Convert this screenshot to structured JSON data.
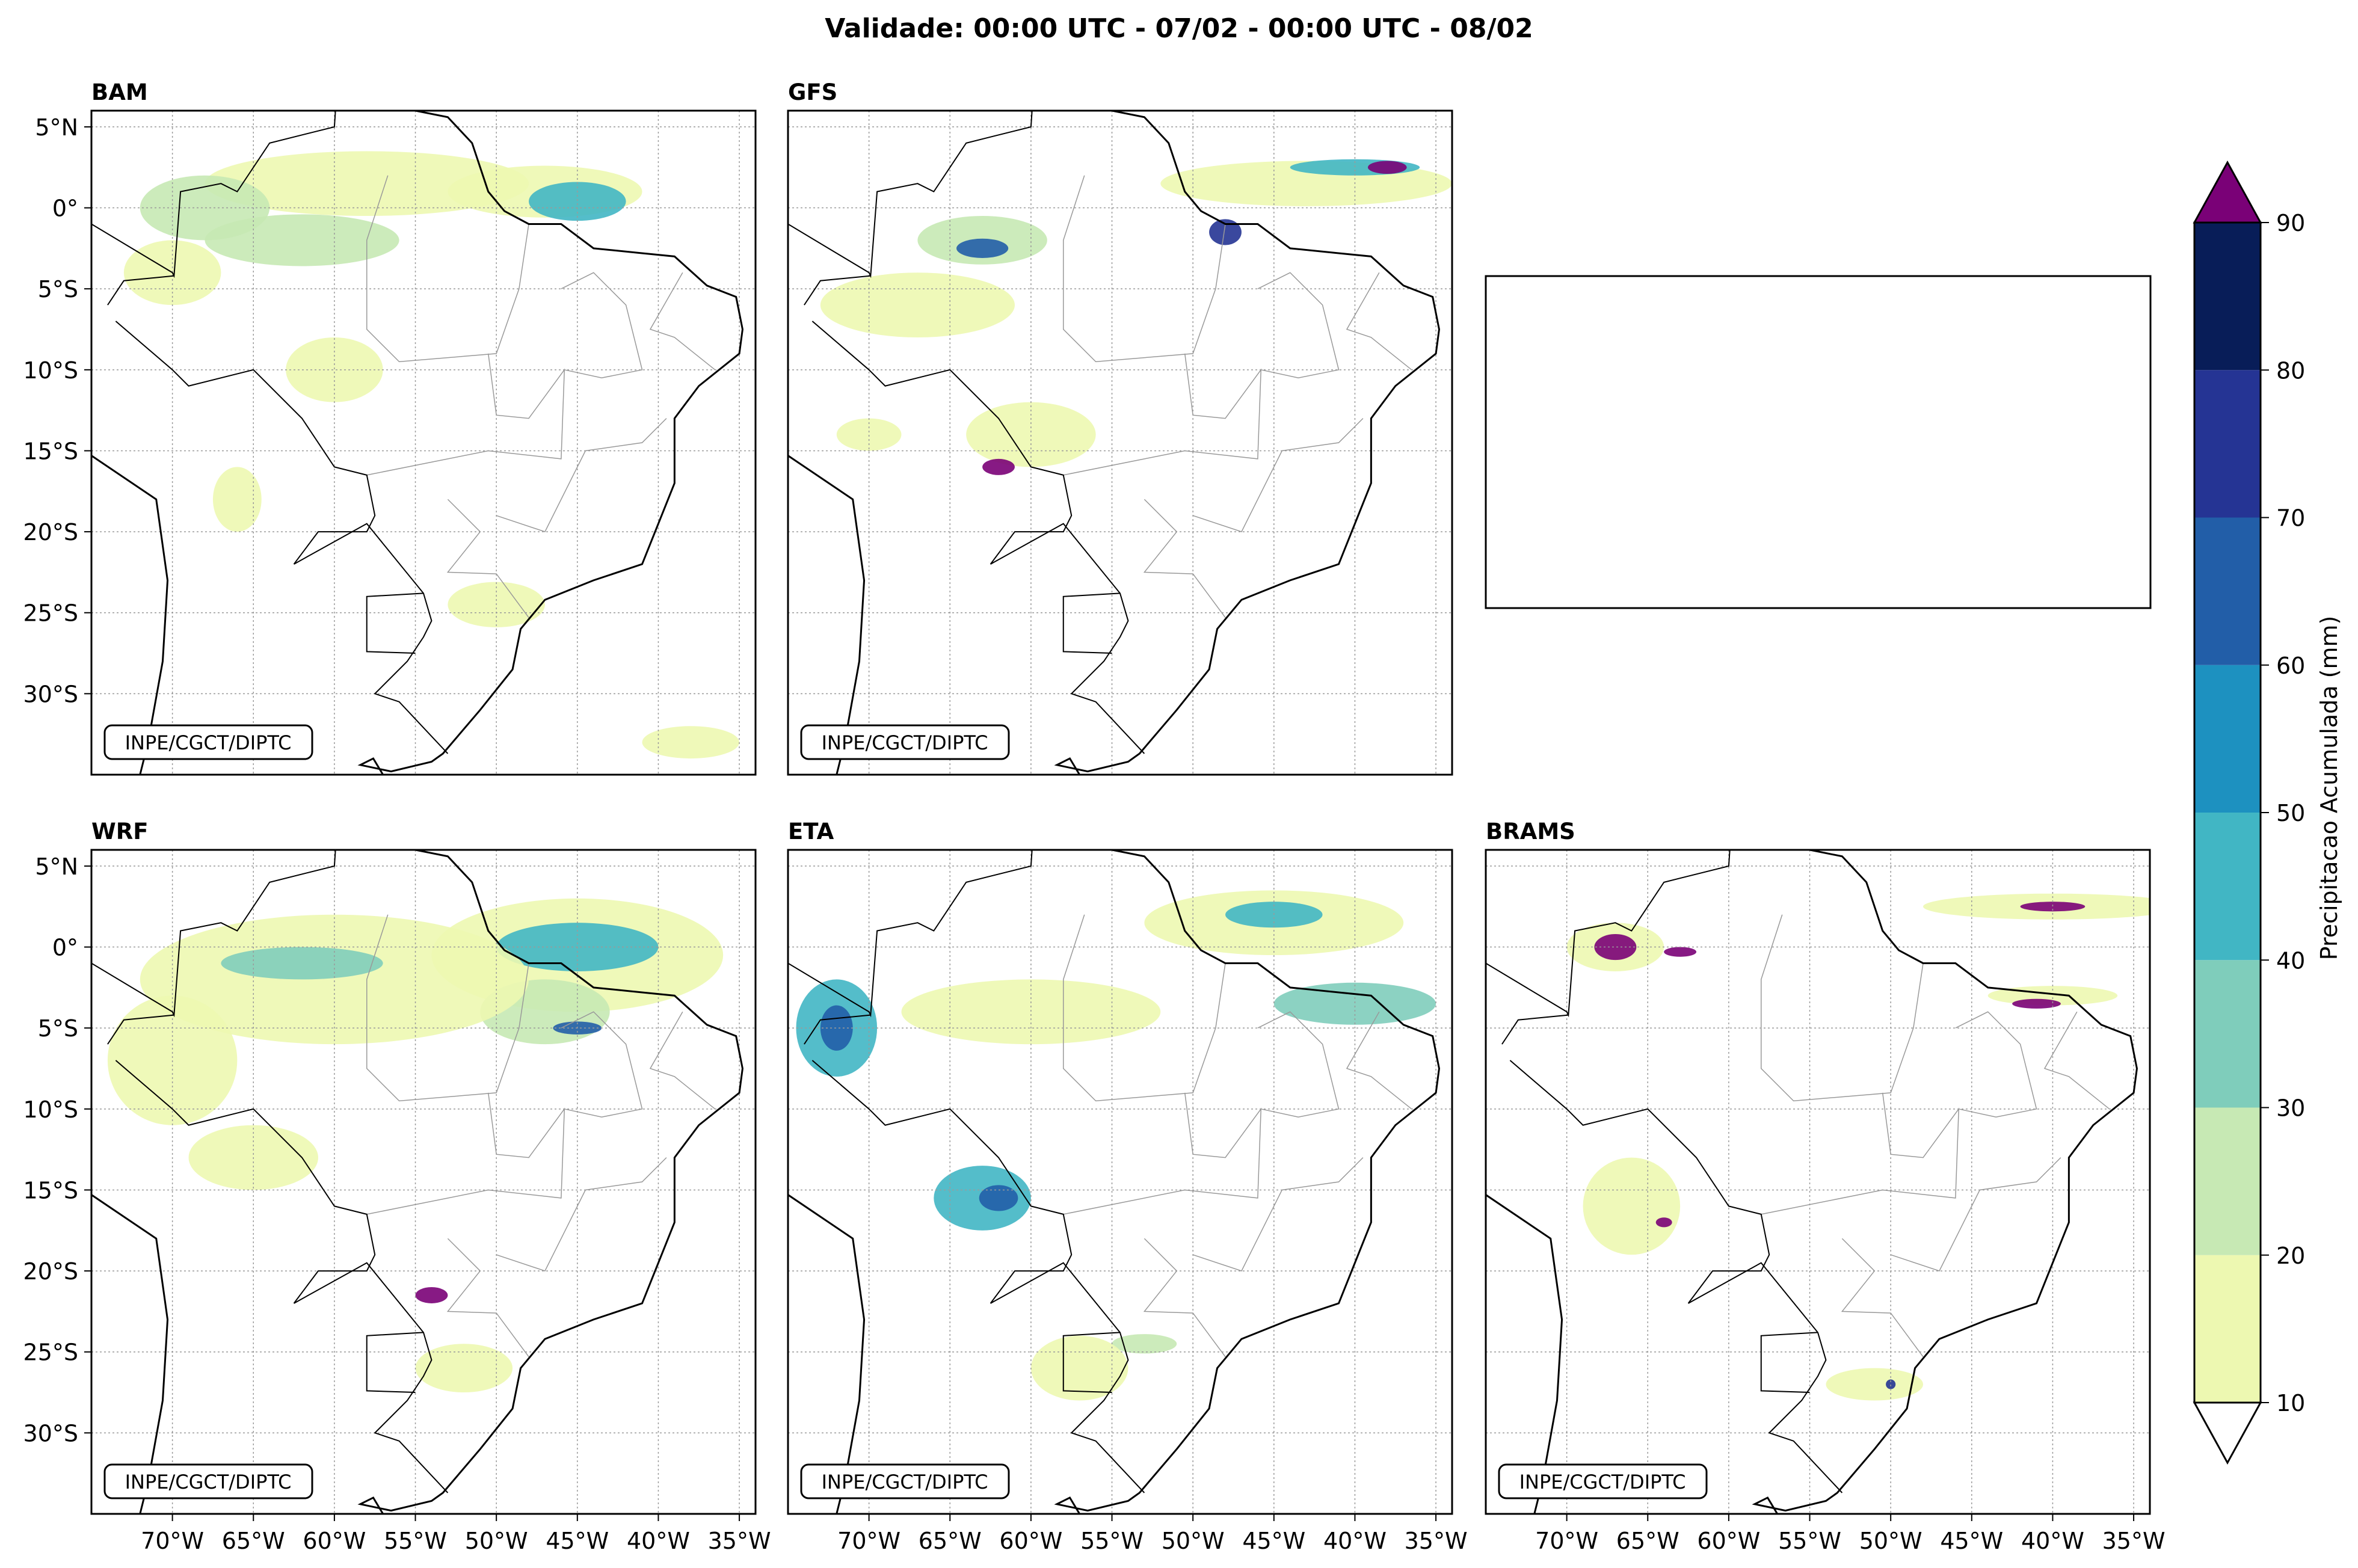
{
  "figure": {
    "title": "Validade: 00:00 UTC - 07/02 - 00:00 UTC - 08/02"
  },
  "panels": [
    {
      "id": "bam",
      "name": "BAM",
      "credit": "INPE/CGCT/DIPTC",
      "lat_labels": true,
      "lon_labels": false
    },
    {
      "id": "gfs",
      "name": "GFS",
      "credit": "INPE/CGCT/DIPTC",
      "lat_labels": false,
      "lon_labels": false
    },
    {
      "id": "wrf",
      "name": "WRF",
      "credit": "INPE/CGCT/DIPTC",
      "lat_labels": true,
      "lon_labels": true
    },
    {
      "id": "eta",
      "name": "ETA",
      "credit": "INPE/CGCT/DIPTC",
      "lat_labels": false,
      "lon_labels": true
    },
    {
      "id": "brams",
      "name": "BRAMS",
      "credit": "INPE/CGCT/DIPTC",
      "lat_labels": false,
      "lon_labels": true
    }
  ],
  "map_extent": {
    "lon_min": -75,
    "lon_max": -34,
    "lat_min": -35,
    "lat_max": 6
  },
  "lat_ticks": [
    {
      "value": 5,
      "label": "5°N"
    },
    {
      "value": 0,
      "label": "0°"
    },
    {
      "value": -5,
      "label": "5°S"
    },
    {
      "value": -10,
      "label": "10°S"
    },
    {
      "value": -15,
      "label": "15°S"
    },
    {
      "value": -20,
      "label": "20°S"
    },
    {
      "value": -25,
      "label": "25°S"
    },
    {
      "value": -30,
      "label": "30°S"
    }
  ],
  "lon_ticks": [
    {
      "value": -70,
      "label": "70°W"
    },
    {
      "value": -65,
      "label": "65°W"
    },
    {
      "value": -60,
      "label": "60°W"
    },
    {
      "value": -55,
      "label": "55°W"
    },
    {
      "value": -50,
      "label": "50°W"
    },
    {
      "value": -45,
      "label": "45°W"
    },
    {
      "value": -40,
      "label": "40°W"
    },
    {
      "value": -35,
      "label": "35°W"
    }
  ],
  "colorbar": {
    "label": "Precipitacao Acumulada (mm)",
    "min": 10,
    "max": 90,
    "levels": [
      10,
      20,
      30,
      40,
      50,
      60,
      70,
      80,
      90
    ],
    "tick_labels": [
      "10",
      "20",
      "30",
      "40",
      "50",
      "60",
      "70",
      "80",
      "90"
    ],
    "colors": [
      "#edf8b1",
      "#c7e9b4",
      "#7fcdbb",
      "#41b6c4",
      "#1d91c0",
      "#225ea8",
      "#253494",
      "#081d58"
    ],
    "over_color": "#7a0177",
    "under_color": "#ffffff"
  },
  "colors": {
    "coast": "#000000",
    "border": "#888888",
    "grid": "#9a9a9a"
  }
}
